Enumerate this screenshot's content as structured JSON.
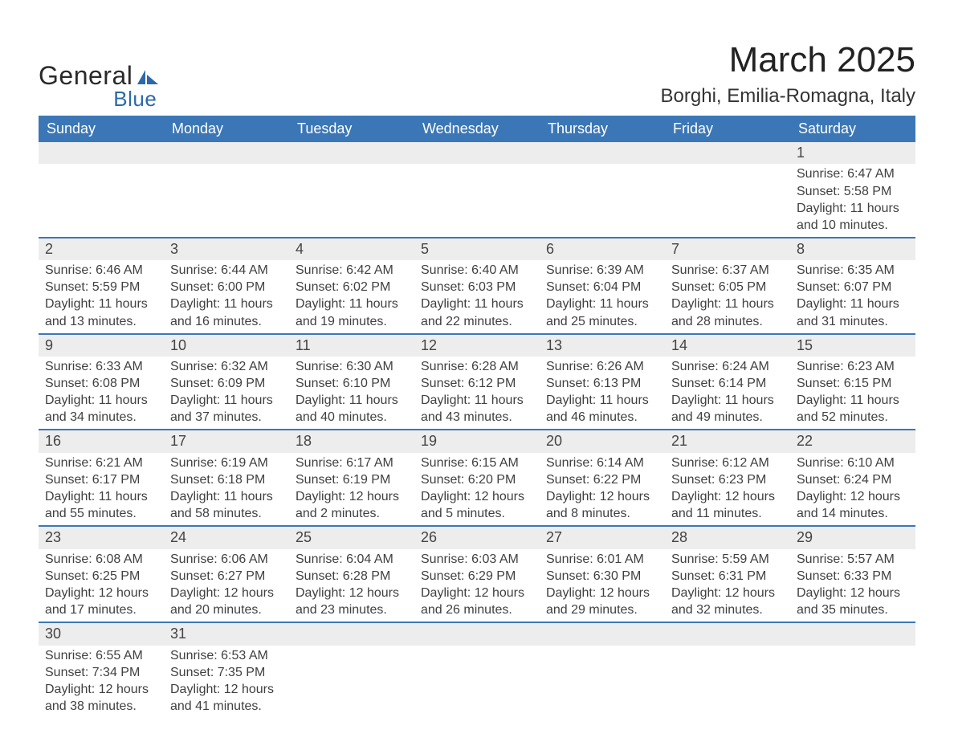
{
  "colors": {
    "header_bg": "#3b77b6",
    "header_text": "#ffffff",
    "daynum_bg": "#ededed",
    "row_divider": "#3b77b6",
    "page_bg": "#ffffff",
    "text": "#3a3a3a",
    "logo_blue": "#2d69aa"
  },
  "logo": {
    "word1": "General",
    "word2": "Blue"
  },
  "title": "March 2025",
  "location": "Borghi, Emilia-Romagna, Italy",
  "day_headers": [
    "Sunday",
    "Monday",
    "Tuesday",
    "Wednesday",
    "Thursday",
    "Friday",
    "Saturday"
  ],
  "weeks": [
    [
      {
        "blank": true
      },
      {
        "blank": true
      },
      {
        "blank": true
      },
      {
        "blank": true
      },
      {
        "blank": true
      },
      {
        "blank": true
      },
      {
        "day": "1",
        "sunrise": "Sunrise: 6:47 AM",
        "sunset": "Sunset: 5:58 PM",
        "daylight1": "Daylight: 11 hours",
        "daylight2": "and 10 minutes."
      }
    ],
    [
      {
        "day": "2",
        "sunrise": "Sunrise: 6:46 AM",
        "sunset": "Sunset: 5:59 PM",
        "daylight1": "Daylight: 11 hours",
        "daylight2": "and 13 minutes."
      },
      {
        "day": "3",
        "sunrise": "Sunrise: 6:44 AM",
        "sunset": "Sunset: 6:00 PM",
        "daylight1": "Daylight: 11 hours",
        "daylight2": "and 16 minutes."
      },
      {
        "day": "4",
        "sunrise": "Sunrise: 6:42 AM",
        "sunset": "Sunset: 6:02 PM",
        "daylight1": "Daylight: 11 hours",
        "daylight2": "and 19 minutes."
      },
      {
        "day": "5",
        "sunrise": "Sunrise: 6:40 AM",
        "sunset": "Sunset: 6:03 PM",
        "daylight1": "Daylight: 11 hours",
        "daylight2": "and 22 minutes."
      },
      {
        "day": "6",
        "sunrise": "Sunrise: 6:39 AM",
        "sunset": "Sunset: 6:04 PM",
        "daylight1": "Daylight: 11 hours",
        "daylight2": "and 25 minutes."
      },
      {
        "day": "7",
        "sunrise": "Sunrise: 6:37 AM",
        "sunset": "Sunset: 6:05 PM",
        "daylight1": "Daylight: 11 hours",
        "daylight2": "and 28 minutes."
      },
      {
        "day": "8",
        "sunrise": "Sunrise: 6:35 AM",
        "sunset": "Sunset: 6:07 PM",
        "daylight1": "Daylight: 11 hours",
        "daylight2": "and 31 minutes."
      }
    ],
    [
      {
        "day": "9",
        "sunrise": "Sunrise: 6:33 AM",
        "sunset": "Sunset: 6:08 PM",
        "daylight1": "Daylight: 11 hours",
        "daylight2": "and 34 minutes."
      },
      {
        "day": "10",
        "sunrise": "Sunrise: 6:32 AM",
        "sunset": "Sunset: 6:09 PM",
        "daylight1": "Daylight: 11 hours",
        "daylight2": "and 37 minutes."
      },
      {
        "day": "11",
        "sunrise": "Sunrise: 6:30 AM",
        "sunset": "Sunset: 6:10 PM",
        "daylight1": "Daylight: 11 hours",
        "daylight2": "and 40 minutes."
      },
      {
        "day": "12",
        "sunrise": "Sunrise: 6:28 AM",
        "sunset": "Sunset: 6:12 PM",
        "daylight1": "Daylight: 11 hours",
        "daylight2": "and 43 minutes."
      },
      {
        "day": "13",
        "sunrise": "Sunrise: 6:26 AM",
        "sunset": "Sunset: 6:13 PM",
        "daylight1": "Daylight: 11 hours",
        "daylight2": "and 46 minutes."
      },
      {
        "day": "14",
        "sunrise": "Sunrise: 6:24 AM",
        "sunset": "Sunset: 6:14 PM",
        "daylight1": "Daylight: 11 hours",
        "daylight2": "and 49 minutes."
      },
      {
        "day": "15",
        "sunrise": "Sunrise: 6:23 AM",
        "sunset": "Sunset: 6:15 PM",
        "daylight1": "Daylight: 11 hours",
        "daylight2": "and 52 minutes."
      }
    ],
    [
      {
        "day": "16",
        "sunrise": "Sunrise: 6:21 AM",
        "sunset": "Sunset: 6:17 PM",
        "daylight1": "Daylight: 11 hours",
        "daylight2": "and 55 minutes."
      },
      {
        "day": "17",
        "sunrise": "Sunrise: 6:19 AM",
        "sunset": "Sunset: 6:18 PM",
        "daylight1": "Daylight: 11 hours",
        "daylight2": "and 58 minutes."
      },
      {
        "day": "18",
        "sunrise": "Sunrise: 6:17 AM",
        "sunset": "Sunset: 6:19 PM",
        "daylight1": "Daylight: 12 hours",
        "daylight2": "and 2 minutes."
      },
      {
        "day": "19",
        "sunrise": "Sunrise: 6:15 AM",
        "sunset": "Sunset: 6:20 PM",
        "daylight1": "Daylight: 12 hours",
        "daylight2": "and 5 minutes."
      },
      {
        "day": "20",
        "sunrise": "Sunrise: 6:14 AM",
        "sunset": "Sunset: 6:22 PM",
        "daylight1": "Daylight: 12 hours",
        "daylight2": "and 8 minutes."
      },
      {
        "day": "21",
        "sunrise": "Sunrise: 6:12 AM",
        "sunset": "Sunset: 6:23 PM",
        "daylight1": "Daylight: 12 hours",
        "daylight2": "and 11 minutes."
      },
      {
        "day": "22",
        "sunrise": "Sunrise: 6:10 AM",
        "sunset": "Sunset: 6:24 PM",
        "daylight1": "Daylight: 12 hours",
        "daylight2": "and 14 minutes."
      }
    ],
    [
      {
        "day": "23",
        "sunrise": "Sunrise: 6:08 AM",
        "sunset": "Sunset: 6:25 PM",
        "daylight1": "Daylight: 12 hours",
        "daylight2": "and 17 minutes."
      },
      {
        "day": "24",
        "sunrise": "Sunrise: 6:06 AM",
        "sunset": "Sunset: 6:27 PM",
        "daylight1": "Daylight: 12 hours",
        "daylight2": "and 20 minutes."
      },
      {
        "day": "25",
        "sunrise": "Sunrise: 6:04 AM",
        "sunset": "Sunset: 6:28 PM",
        "daylight1": "Daylight: 12 hours",
        "daylight2": "and 23 minutes."
      },
      {
        "day": "26",
        "sunrise": "Sunrise: 6:03 AM",
        "sunset": "Sunset: 6:29 PM",
        "daylight1": "Daylight: 12 hours",
        "daylight2": "and 26 minutes."
      },
      {
        "day": "27",
        "sunrise": "Sunrise: 6:01 AM",
        "sunset": "Sunset: 6:30 PM",
        "daylight1": "Daylight: 12 hours",
        "daylight2": "and 29 minutes."
      },
      {
        "day": "28",
        "sunrise": "Sunrise: 5:59 AM",
        "sunset": "Sunset: 6:31 PM",
        "daylight1": "Daylight: 12 hours",
        "daylight2": "and 32 minutes."
      },
      {
        "day": "29",
        "sunrise": "Sunrise: 5:57 AM",
        "sunset": "Sunset: 6:33 PM",
        "daylight1": "Daylight: 12 hours",
        "daylight2": "and 35 minutes."
      }
    ],
    [
      {
        "day": "30",
        "sunrise": "Sunrise: 6:55 AM",
        "sunset": "Sunset: 7:34 PM",
        "daylight1": "Daylight: 12 hours",
        "daylight2": "and 38 minutes."
      },
      {
        "day": "31",
        "sunrise": "Sunrise: 6:53 AM",
        "sunset": "Sunset: 7:35 PM",
        "daylight1": "Daylight: 12 hours",
        "daylight2": "and 41 minutes."
      },
      {
        "blank": true
      },
      {
        "blank": true
      },
      {
        "blank": true
      },
      {
        "blank": true
      },
      {
        "blank": true
      }
    ]
  ]
}
